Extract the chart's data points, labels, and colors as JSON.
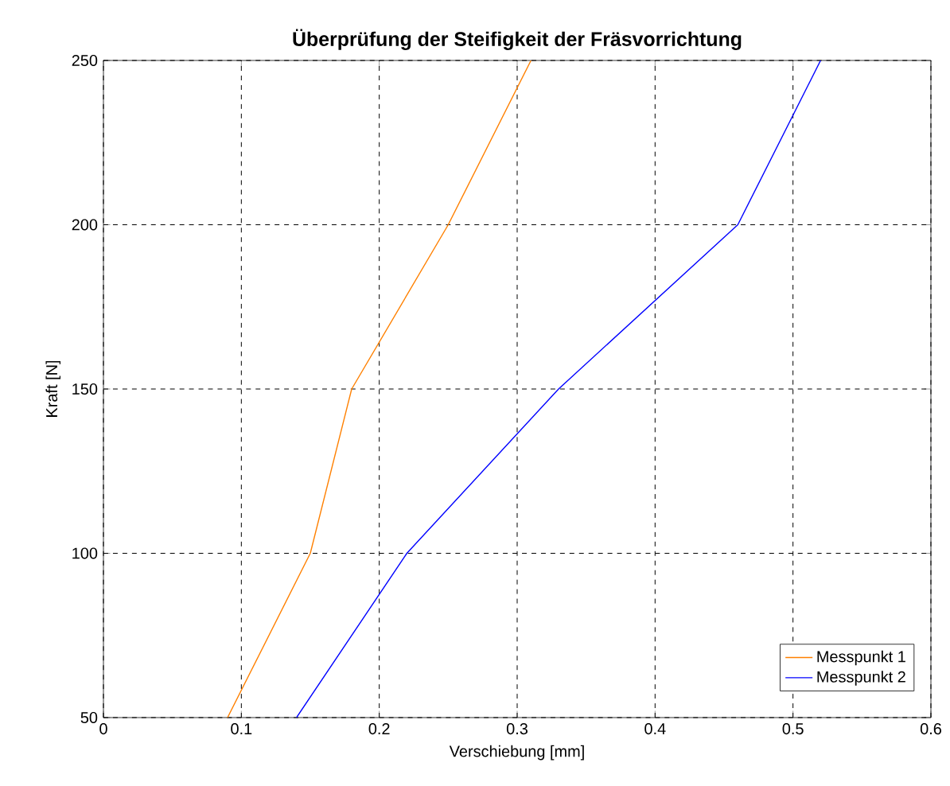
{
  "chart_data": {
    "type": "line",
    "title": "Überprüfung der Steifigkeit der Fräsvorrichtung",
    "xlabel": "Verschiebung [mm]",
    "ylabel": "Kraft [N]",
    "xlim": [
      0,
      0.6
    ],
    "ylim": [
      50,
      250
    ],
    "xticks": [
      0,
      0.1,
      0.2,
      0.3,
      0.4,
      0.5,
      0.6
    ],
    "yticks": [
      50,
      100,
      150,
      200,
      250
    ],
    "grid": true,
    "legend": "bottom right",
    "series": [
      {
        "name": "Messpunkt 1",
        "color": "#ff8000",
        "x": [
          0.09,
          0.15,
          0.18,
          0.25,
          0.31
        ],
        "values": [
          50,
          100,
          150,
          200,
          250
        ]
      },
      {
        "name": "Messpunkt 2",
        "color": "#0000ff",
        "x": [
          0.14,
          0.22,
          0.33,
          0.46,
          0.52
        ],
        "values": [
          50,
          100,
          150,
          200,
          250
        ]
      }
    ]
  }
}
